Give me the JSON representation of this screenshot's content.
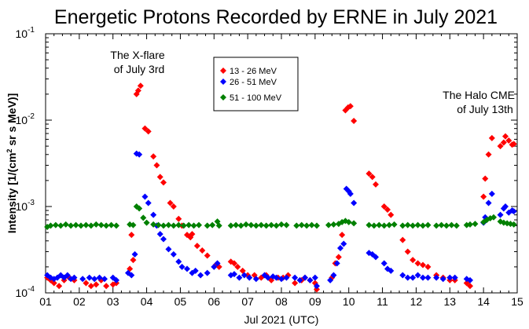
{
  "chart_data": {
    "type": "scatter",
    "title": "Energetic Protons Recorded by ERNE in July 2021",
    "xlabel": "Jul 2021 (UTC)",
    "ylabel": "Intensity [1/(cm² sr s MeV)]",
    "ylabel_parts": {
      "before": "Intensity [1/(cm",
      "sup": "2",
      "after": " sr s MeV)]"
    },
    "yscale": "log",
    "xlim": [
      1,
      15
    ],
    "ylim": [
      0.0001,
      0.1
    ],
    "x_ticks": [
      "01",
      "02",
      "03",
      "04",
      "05",
      "06",
      "07",
      "08",
      "09",
      "10",
      "11",
      "12",
      "13",
      "14",
      "15"
    ],
    "y_ticks": [
      {
        "value": 0.1,
        "base": "10",
        "exp": "-1"
      },
      {
        "value": 0.01,
        "base": "10",
        "exp": "-2"
      },
      {
        "value": 0.001,
        "base": "10",
        "exp": "-3"
      },
      {
        "value": 0.0001,
        "base": "10",
        "exp": "-4"
      }
    ],
    "legend_position": "top-left",
    "annotations": [
      {
        "lines": [
          "The X-flare",
          "of July 3rd"
        ],
        "x": 3.8,
        "y": 0.05
      },
      {
        "lines": [
          "The Halo CME",
          "of July 13th"
        ],
        "x": 13.8,
        "y": 0.012
      }
    ],
    "series": [
      {
        "name": "13 - 26 MeV",
        "color": "#ff0000",
        "points": [
          [
            1.05,
            0.00015
          ],
          [
            1.15,
            0.00014
          ],
          [
            1.25,
            0.00013
          ],
          [
            1.4,
            0.00012
          ],
          [
            1.55,
            0.00014
          ],
          [
            1.7,
            0.00015
          ],
          [
            1.85,
            0.00014
          ],
          [
            2.2,
            0.00013
          ],
          [
            2.35,
            0.00012
          ],
          [
            2.5,
            0.000125
          ],
          [
            2.65,
            0.00014
          ],
          [
            2.8,
            0.00012
          ],
          [
            3.0,
            0.000125
          ],
          [
            3.1,
            0.00013
          ],
          [
            3.5,
            0.00019
          ],
          [
            3.55,
            0.00047
          ],
          [
            3.6,
            0.00024
          ],
          [
            3.7,
            0.02
          ],
          [
            3.75,
            0.022
          ],
          [
            3.82,
            0.025
          ],
          [
            3.95,
            0.008
          ],
          [
            4.05,
            0.0074
          ],
          [
            4.2,
            0.0038
          ],
          [
            4.3,
            0.003
          ],
          [
            4.4,
            0.0022
          ],
          [
            4.5,
            0.0019
          ],
          [
            4.7,
            0.0011
          ],
          [
            4.8,
            0.001
          ],
          [
            4.95,
            0.00072
          ],
          [
            5.05,
            0.0006
          ],
          [
            5.2,
            0.00047
          ],
          [
            5.3,
            0.00044
          ],
          [
            5.35,
            0.00048
          ],
          [
            5.5,
            0.00035
          ],
          [
            5.65,
            0.00031
          ],
          [
            5.8,
            0.00027
          ],
          [
            6.05,
            0.00021
          ],
          [
            6.15,
            0.0002
          ],
          [
            6.5,
            0.00023
          ],
          [
            6.6,
            0.00022
          ],
          [
            6.7,
            0.0002
          ],
          [
            6.85,
            0.00018
          ],
          [
            7.0,
            0.00016
          ],
          [
            7.2,
            0.00016
          ],
          [
            7.4,
            0.00015
          ],
          [
            7.55,
            0.00016
          ],
          [
            7.7,
            0.00014
          ],
          [
            7.9,
            0.00015
          ],
          [
            8.05,
            0.00015
          ],
          [
            8.2,
            0.00016
          ],
          [
            8.4,
            0.00013
          ],
          [
            8.6,
            0.00014
          ],
          [
            8.7,
            0.00015
          ],
          [
            8.85,
            0.00014
          ],
          [
            9.0,
            0.00013
          ],
          [
            9.05,
            0.00011
          ],
          [
            9.5,
            0.00015
          ],
          [
            9.6,
            0.00022
          ],
          [
            9.7,
            0.00026
          ],
          [
            9.8,
            0.00047
          ],
          [
            9.9,
            0.013
          ],
          [
            9.98,
            0.014
          ],
          [
            10.05,
            0.0145
          ],
          [
            10.15,
            0.0098
          ],
          [
            10.6,
            0.0024
          ],
          [
            10.7,
            0.0022
          ],
          [
            10.8,
            0.0018
          ],
          [
            11.05,
            0.001
          ],
          [
            11.15,
            0.00092
          ],
          [
            11.25,
            0.0008
          ],
          [
            11.6,
            0.00041
          ],
          [
            11.75,
            0.0003
          ],
          [
            11.9,
            0.00024
          ],
          [
            12.05,
            0.00022
          ],
          [
            12.2,
            0.00021
          ],
          [
            12.35,
            0.0002
          ],
          [
            12.6,
            0.00016
          ],
          [
            12.8,
            0.00015
          ],
          [
            13.0,
            0.00014
          ],
          [
            13.15,
            0.00014
          ],
          [
            13.5,
            0.00013
          ],
          [
            13.6,
            0.00012
          ],
          [
            14.0,
            0.0013
          ],
          [
            14.05,
            0.0021
          ],
          [
            14.15,
            0.004
          ],
          [
            14.25,
            0.0062
          ],
          [
            14.5,
            0.005
          ],
          [
            14.6,
            0.0055
          ],
          [
            14.65,
            0.0065
          ],
          [
            14.75,
            0.0058
          ],
          [
            14.85,
            0.0052
          ],
          [
            14.9,
            0.0053
          ]
        ]
      },
      {
        "name": "26 - 51 MeV",
        "color": "#0000ff",
        "points": [
          [
            1.05,
            0.00016
          ],
          [
            1.15,
            0.00015
          ],
          [
            1.25,
            0.000145
          ],
          [
            1.35,
            0.00015
          ],
          [
            1.45,
            0.00016
          ],
          [
            1.55,
            0.00015
          ],
          [
            1.65,
            0.00016
          ],
          [
            1.75,
            0.000145
          ],
          [
            1.85,
            0.00015
          ],
          [
            2.1,
            0.000145
          ],
          [
            2.3,
            0.00015
          ],
          [
            2.45,
            0.000145
          ],
          [
            2.6,
            0.00015
          ],
          [
            2.75,
            0.000145
          ],
          [
            3.0,
            0.00015
          ],
          [
            3.1,
            0.00014
          ],
          [
            3.45,
            0.00017
          ],
          [
            3.55,
            0.00016
          ],
          [
            3.65,
            0.00028
          ],
          [
            3.7,
            0.0041
          ],
          [
            3.78,
            0.004
          ],
          [
            3.95,
            0.0013
          ],
          [
            4.05,
            0.0011
          ],
          [
            4.2,
            0.0008
          ],
          [
            4.3,
            0.0006
          ],
          [
            4.4,
            0.00048
          ],
          [
            4.5,
            0.00042
          ],
          [
            4.65,
            0.00032
          ],
          [
            4.8,
            0.00028
          ],
          [
            4.95,
            0.00023
          ],
          [
            5.05,
            0.0002
          ],
          [
            5.2,
            0.00019
          ],
          [
            5.35,
            0.00017
          ],
          [
            5.45,
            0.00018
          ],
          [
            5.6,
            0.00016
          ],
          [
            5.8,
            0.00017
          ],
          [
            6.0,
            0.0002
          ],
          [
            6.1,
            0.00022
          ],
          [
            6.5,
            0.00016
          ],
          [
            6.6,
            0.000165
          ],
          [
            6.75,
            0.00015
          ],
          [
            6.9,
            0.00016
          ],
          [
            7.05,
            0.00015
          ],
          [
            7.25,
            0.000145
          ],
          [
            7.5,
            0.00016
          ],
          [
            7.6,
            0.00015
          ],
          [
            7.75,
            0.000155
          ],
          [
            7.85,
            0.00015
          ],
          [
            8.0,
            0.000145
          ],
          [
            8.15,
            0.00015
          ],
          [
            8.4,
            0.00015
          ],
          [
            8.55,
            0.00014
          ],
          [
            8.7,
            0.00015
          ],
          [
            8.85,
            0.00014
          ],
          [
            9.0,
            0.00015
          ],
          [
            9.05,
            0.00012
          ],
          [
            9.45,
            0.00014
          ],
          [
            9.55,
            0.00016
          ],
          [
            9.65,
            0.00022
          ],
          [
            9.75,
            0.00033
          ],
          [
            9.85,
            0.00037
          ],
          [
            9.93,
            0.0016
          ],
          [
            10.0,
            0.0015
          ],
          [
            10.05,
            0.0014
          ],
          [
            10.15,
            0.0011
          ],
          [
            10.6,
            0.00029
          ],
          [
            10.7,
            0.00028
          ],
          [
            10.8,
            0.00026
          ],
          [
            11.05,
            0.00022
          ],
          [
            11.15,
            0.00019
          ],
          [
            11.25,
            0.00018
          ],
          [
            11.6,
            0.00016
          ],
          [
            11.75,
            0.00015
          ],
          [
            11.9,
            0.00015
          ],
          [
            12.05,
            0.00016
          ],
          [
            12.2,
            0.00015
          ],
          [
            12.35,
            0.00015
          ],
          [
            12.6,
            0.00015
          ],
          [
            12.8,
            0.000145
          ],
          [
            13.0,
            0.00015
          ],
          [
            13.15,
            0.00015
          ],
          [
            13.5,
            0.000145
          ],
          [
            13.6,
            0.00014
          ],
          [
            14.0,
            0.00065
          ],
          [
            14.05,
            0.00075
          ],
          [
            14.15,
            0.0011
          ],
          [
            14.25,
            0.0014
          ],
          [
            14.5,
            0.0008
          ],
          [
            14.6,
            0.00095
          ],
          [
            14.65,
            0.001
          ],
          [
            14.75,
            0.00085
          ],
          [
            14.85,
            0.0009
          ],
          [
            14.9,
            0.00088
          ]
        ]
      },
      {
        "name": "51 - 100 MeV",
        "color": "#008000",
        "points": [
          [
            1.05,
            0.00058
          ],
          [
            1.15,
            0.0006
          ],
          [
            1.3,
            0.00061
          ],
          [
            1.45,
            0.0006
          ],
          [
            1.6,
            0.00062
          ],
          [
            1.75,
            0.0006
          ],
          [
            1.9,
            0.00061
          ],
          [
            2.05,
            0.0006
          ],
          [
            2.2,
            0.00061
          ],
          [
            2.35,
            0.0006
          ],
          [
            2.5,
            0.00062
          ],
          [
            2.65,
            0.00061
          ],
          [
            2.8,
            0.0006
          ],
          [
            2.95,
            0.00061
          ],
          [
            3.1,
            0.0006
          ],
          [
            3.5,
            0.00062
          ],
          [
            3.6,
            0.00061
          ],
          [
            3.7,
            0.001
          ],
          [
            3.78,
            0.00095
          ],
          [
            3.9,
            0.00074
          ],
          [
            4.0,
            0.00065
          ],
          [
            4.2,
            0.00062
          ],
          [
            4.35,
            0.00061
          ],
          [
            4.5,
            0.0006
          ],
          [
            4.65,
            0.00061
          ],
          [
            4.8,
            0.0006
          ],
          [
            4.95,
            0.00061
          ],
          [
            5.1,
            0.0006
          ],
          [
            5.25,
            0.00061
          ],
          [
            5.4,
            0.0006
          ],
          [
            5.55,
            0.00061
          ],
          [
            5.8,
            0.0006
          ],
          [
            5.95,
            0.00061
          ],
          [
            6.1,
            0.00067
          ],
          [
            6.15,
            0.0006
          ],
          [
            6.5,
            0.0006
          ],
          [
            6.65,
            0.00061
          ],
          [
            6.8,
            0.0006
          ],
          [
            6.95,
            0.00062
          ],
          [
            7.1,
            0.00061
          ],
          [
            7.25,
            0.0006
          ],
          [
            7.4,
            0.00061
          ],
          [
            7.55,
            0.0006
          ],
          [
            7.7,
            0.00061
          ],
          [
            7.85,
            0.0006
          ],
          [
            8.0,
            0.00062
          ],
          [
            8.15,
            0.00061
          ],
          [
            8.45,
            0.0006
          ],
          [
            8.6,
            0.00061
          ],
          [
            8.75,
            0.0006
          ],
          [
            8.9,
            0.00061
          ],
          [
            9.05,
            0.0006
          ],
          [
            9.4,
            0.00061
          ],
          [
            9.55,
            0.00062
          ],
          [
            9.7,
            0.00063
          ],
          [
            9.8,
            0.00066
          ],
          [
            9.9,
            0.00068
          ],
          [
            10.0,
            0.00066
          ],
          [
            10.15,
            0.00064
          ],
          [
            10.6,
            0.00061
          ],
          [
            10.75,
            0.0006
          ],
          [
            10.9,
            0.00061
          ],
          [
            11.05,
            0.0006
          ],
          [
            11.2,
            0.00061
          ],
          [
            11.35,
            0.00062
          ],
          [
            11.6,
            0.0006
          ],
          [
            11.75,
            0.00061
          ],
          [
            11.9,
            0.0006
          ],
          [
            12.05,
            0.00061
          ],
          [
            12.2,
            0.0006
          ],
          [
            12.35,
            0.00061
          ],
          [
            12.6,
            0.0006
          ],
          [
            12.75,
            0.00061
          ],
          [
            12.9,
            0.0006
          ],
          [
            13.05,
            0.00061
          ],
          [
            13.2,
            0.0006
          ],
          [
            13.5,
            0.00061
          ],
          [
            13.6,
            0.00062
          ],
          [
            13.75,
            0.00063
          ],
          [
            14.0,
            0.00066
          ],
          [
            14.1,
            0.0007
          ],
          [
            14.2,
            0.00073
          ],
          [
            14.3,
            0.00075
          ],
          [
            14.5,
            0.00067
          ],
          [
            14.6,
            0.00065
          ],
          [
            14.7,
            0.00064
          ],
          [
            14.8,
            0.00063
          ],
          [
            14.9,
            0.00062
          ]
        ]
      }
    ]
  }
}
